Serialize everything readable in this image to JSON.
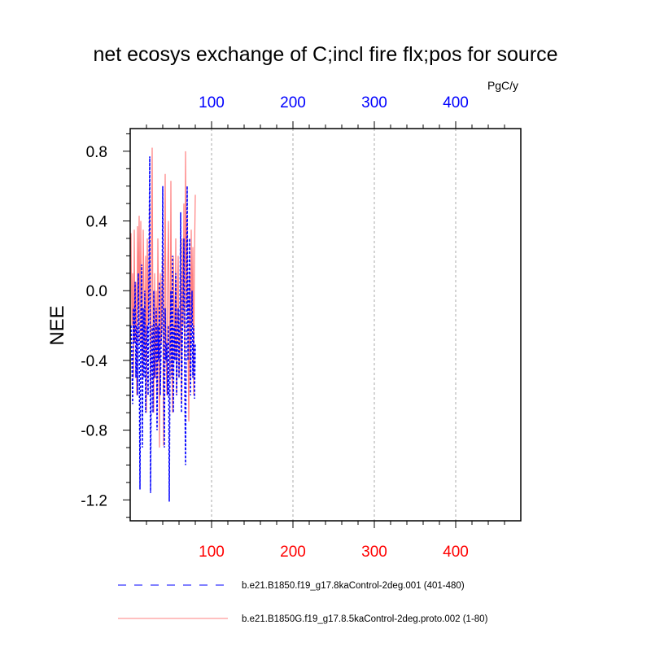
{
  "chart_data": {
    "type": "line",
    "title": "net ecosys exchange of C;incl fire flx;pos for source",
    "units": "PgC/y",
    "xlabel": "",
    "ylabel": "NEE",
    "xlim": [
      0,
      480
    ],
    "ylim": [
      -1.32,
      0.93
    ],
    "xticks": [
      100,
      200,
      300,
      400
    ],
    "xtick_labels": [
      "100",
      "200",
      "300",
      "400"
    ],
    "yticks": [
      0.8,
      0.4,
      0.0,
      -0.4,
      -0.8,
      -1.2
    ],
    "ytick_labels": [
      "0.8",
      "0.4",
      "0.0",
      "-0.4",
      "-0.8",
      "-1.2"
    ],
    "top_axis_color": "#0000ff",
    "bottom_axis_color": "#ff0000",
    "grid": "vertical dashed",
    "legend_position": "bottom",
    "series": [
      {
        "name": "b.e21.B1850.f19_g17.8kaControl-2deg.001 (401-480)",
        "color": "#0000ff",
        "style": "dashed",
        "values": [
          -0.2,
          -0.4,
          -0.65,
          -0.1,
          -0.3,
          0.05,
          -0.5,
          -0.2,
          -0.6,
          0.1,
          -0.3,
          -1.14,
          -0.2,
          0.15,
          -0.9,
          -0.1,
          -0.5,
          0.0,
          -0.7,
          -0.3,
          -0.2,
          -0.6,
          0.1,
          0.77,
          -1.16,
          -0.4,
          -0.2,
          -0.7,
          0.0,
          -0.5,
          -0.3,
          -0.1,
          -0.8,
          -0.2,
          -0.4,
          0.05,
          -0.6,
          -0.3,
          -0.2,
          0.6,
          -0.5,
          -0.9,
          -0.1,
          -0.4,
          -0.3,
          -0.6,
          -0.2,
          -1.21,
          -0.4,
          0.0,
          -0.5,
          0.2,
          -0.7,
          -0.2,
          -0.4,
          0.1,
          -0.6,
          -0.3,
          -0.1,
          -0.5,
          -0.2,
          0.45,
          -0.7,
          -0.3,
          -0.1,
          0.3,
          -0.5,
          -1.0,
          -0.2,
          0.6,
          -0.4,
          -0.1,
          0.3,
          -0.6,
          -0.3,
          0.0,
          -0.5,
          -0.2,
          -0.62,
          -0.3
        ]
      },
      {
        "name": "b.e21.B1850G.f19_g17.8.5kaControl-2deg.proto.002 (1-80)",
        "color": "#ff8080",
        "style": "solid",
        "values": [
          0.33,
          -0.2,
          0.1,
          -0.5,
          0.35,
          -0.3,
          0.05,
          -0.6,
          0.37,
          -0.1,
          0.43,
          -0.3,
          0.4,
          -0.2,
          -0.5,
          0.35,
          0.0,
          -0.4,
          0.2,
          -0.7,
          0.3,
          -0.2,
          0.1,
          0.5,
          -0.6,
          0.0,
          0.82,
          -0.3,
          -0.7,
          0.1,
          -0.5,
          0.0,
          -0.6,
          0.3,
          -0.2,
          -0.9,
          0.1,
          -0.3,
          0.05,
          0.2,
          -0.89,
          -0.1,
          0.67,
          -0.3,
          -0.6,
          0.1,
          0.4,
          -0.2,
          -0.5,
          0.63,
          -0.4,
          -0.7,
          0.2,
          -0.1,
          -0.4,
          0.3,
          -0.6,
          0.0,
          0.2,
          -0.5,
          -0.3,
          0.1,
          -0.65,
          0.3,
          -0.2,
          0.5,
          -0.4,
          0.8,
          -0.1,
          0.42,
          -0.3,
          -0.75,
          0.1,
          -0.5,
          0.35,
          -0.2,
          0.25,
          -0.6,
          0.2,
          0.55
        ]
      }
    ]
  }
}
